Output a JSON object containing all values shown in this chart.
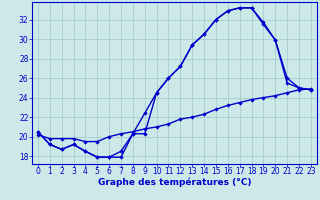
{
  "title": "Graphe des températures (°C)",
  "bg_color": "#cce8e8",
  "grid_color": "#aacccc",
  "line_color": "#0000cc",
  "xlim": [
    -0.5,
    23.5
  ],
  "ylim": [
    17.2,
    33.8
  ],
  "yticks": [
    18,
    20,
    22,
    24,
    26,
    28,
    30,
    32
  ],
  "xticks": [
    0,
    1,
    2,
    3,
    4,
    5,
    6,
    7,
    8,
    9,
    10,
    11,
    12,
    13,
    14,
    15,
    16,
    17,
    18,
    19,
    20,
    21,
    22,
    23
  ],
  "curve1_x": [
    0,
    1,
    2,
    3,
    4,
    5,
    6,
    7,
    8,
    9,
    10,
    11,
    12,
    13,
    14,
    15,
    16,
    17,
    18,
    19,
    20,
    21,
    22,
    23
  ],
  "curve1_y": [
    20.5,
    19.2,
    18.7,
    19.2,
    18.5,
    17.9,
    17.9,
    17.9,
    20.3,
    22.4,
    24.5,
    26.0,
    27.2,
    29.4,
    30.5,
    32.0,
    32.9,
    33.2,
    33.2,
    31.7,
    29.9,
    25.5,
    25.0,
    24.8
  ],
  "curve2_x": [
    0,
    1,
    2,
    3,
    4,
    5,
    6,
    7,
    8,
    9,
    10,
    11,
    12,
    13,
    14,
    15,
    16,
    17,
    18,
    19,
    20,
    21,
    22,
    23
  ],
  "curve2_y": [
    20.5,
    19.2,
    18.7,
    19.2,
    18.5,
    17.9,
    17.9,
    18.5,
    20.3,
    20.3,
    24.5,
    26.0,
    27.2,
    29.4,
    30.5,
    32.0,
    32.9,
    33.2,
    33.2,
    31.5,
    29.9,
    26.0,
    25.0,
    24.8
  ],
  "curve3_x": [
    0,
    1,
    2,
    3,
    4,
    5,
    6,
    7,
    8,
    9,
    10,
    11,
    12,
    13,
    14,
    15,
    16,
    17,
    18,
    19,
    20,
    21,
    22,
    23
  ],
  "curve3_y": [
    20.2,
    19.8,
    19.8,
    19.8,
    19.5,
    19.5,
    20.0,
    20.3,
    20.5,
    20.8,
    21.0,
    21.3,
    21.8,
    22.0,
    22.3,
    22.8,
    23.2,
    23.5,
    23.8,
    24.0,
    24.2,
    24.5,
    24.8,
    24.9
  ],
  "xlabel_fontsize": 6.5,
  "tick_fontsize": 5.5
}
